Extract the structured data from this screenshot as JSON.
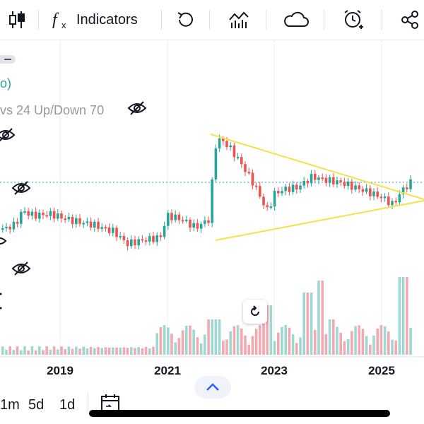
{
  "toolbar": {
    "indicators_label": "Indicators",
    "icons": [
      "candles-icon",
      "function-icon",
      "undo-icon",
      "compare-icon",
      "cloud-icon",
      "alarm-add-icon",
      "share-icon"
    ]
  },
  "legend": {
    "line1": "o)",
    "line2": "vs 24 Up/Down 70"
  },
  "x_axis": {
    "labels": [
      "2019",
      "2021",
      "2023",
      "2025"
    ]
  },
  "timeframes": [
    "1m",
    "5d",
    "1d"
  ],
  "colors": {
    "up": "#26a69a",
    "down": "#ef5350",
    "trendline": "#f7e04a",
    "volume_up": "#9fd7d2",
    "volume_down": "#f2aab0"
  }
}
